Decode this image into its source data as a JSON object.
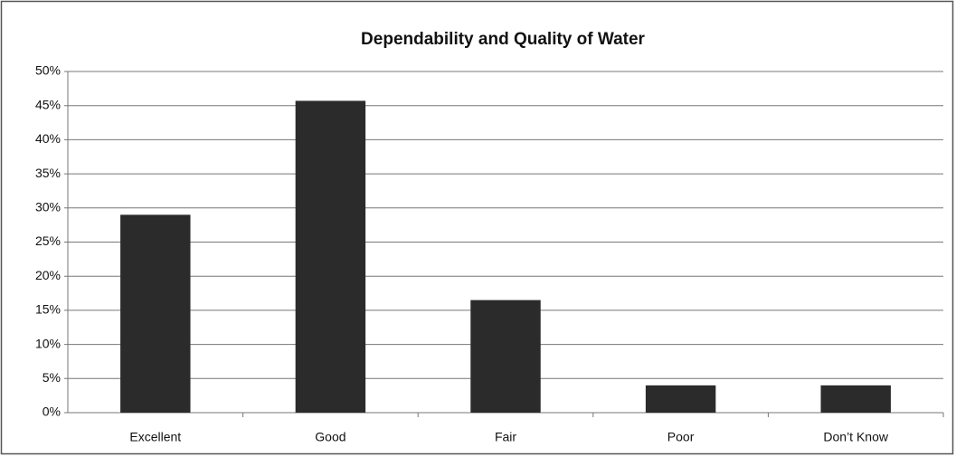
{
  "chart_data": {
    "type": "bar",
    "title": "Dependability and Quality of Water",
    "categories": [
      "Excellent",
      "Good",
      "Fair",
      "Poor",
      "Don’t Know"
    ],
    "values": [
      29,
      45.7,
      16.5,
      4,
      4
    ],
    "color": "#2b2b2b",
    "ylim": [
      0,
      50
    ],
    "yticks": [
      {
        "value": 0,
        "label": "0%"
      },
      {
        "value": 5,
        "label": "5%"
      },
      {
        "value": 10,
        "label": "10%"
      },
      {
        "value": 15,
        "label": "15%"
      },
      {
        "value": 20,
        "label": "20%"
      },
      {
        "value": 25,
        "label": "25%"
      },
      {
        "value": 30,
        "label": "30%"
      },
      {
        "value": 35,
        "label": "35%"
      },
      {
        "value": 40,
        "label": "40%"
      },
      {
        "value": 45,
        "label": "45%"
      },
      {
        "value": 50,
        "label": "50%"
      }
    ],
    "grid": true
  }
}
